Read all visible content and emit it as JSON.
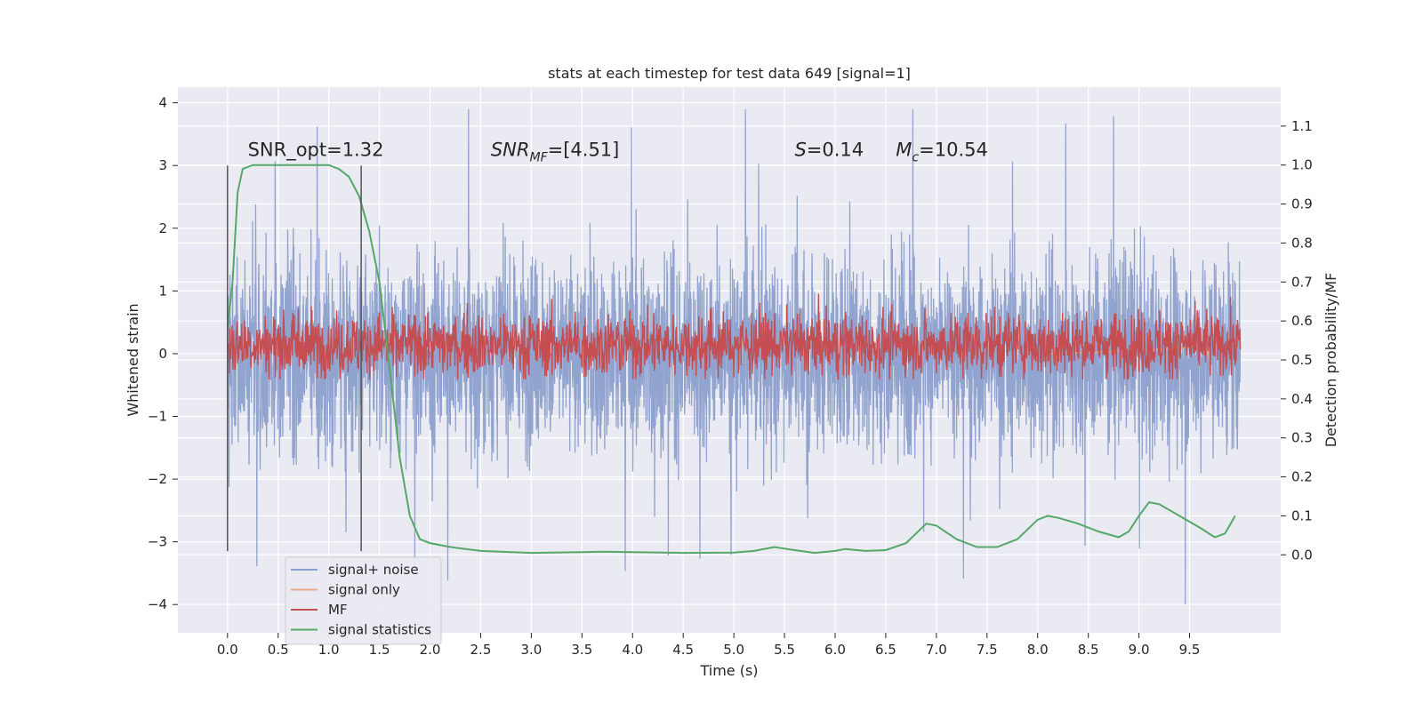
{
  "chart_data": {
    "type": "line",
    "title": "stats at each timestep for test data 649 [signal=1]",
    "xlabel": "Time (s)",
    "ylabel": "Whitened strain",
    "y2label": "Detection probability/MF",
    "xlim": [
      -0.49,
      10.4
    ],
    "ylim": [
      -4.45,
      4.25
    ],
    "y2lim": [
      -0.2,
      1.2
    ],
    "xticks": [
      "0.0",
      "0.5",
      "1.0",
      "1.5",
      "2.0",
      "2.5",
      "3.0",
      "3.5",
      "4.0",
      "4.5",
      "5.0",
      "5.5",
      "6.0",
      "6.5",
      "7.0",
      "7.5",
      "8.0",
      "8.5",
      "9.0",
      "9.5"
    ],
    "yticks": [
      "4",
      "3",
      "2",
      "1",
      "0",
      "−1",
      "−2",
      "−3",
      "−4"
    ],
    "y2ticks": [
      "1.1",
      "1.0",
      "0.9",
      "0.8",
      "0.7",
      "0.6",
      "0.5",
      "0.4",
      "0.3",
      "0.2",
      "0.1",
      "0.0"
    ],
    "grid": true,
    "legend_position": "lower-left",
    "annotations": [
      {
        "text": "SNR_opt=1.32",
        "x": 0.2,
        "y": 3.15
      },
      {
        "text": "SNR_MF=[4.51]",
        "x": 2.6,
        "y": 3.15
      },
      {
        "text": "S=0.14",
        "x": 5.6,
        "y": 3.15
      },
      {
        "text": "M_c=10.54",
        "x": 6.6,
        "y": 3.15
      }
    ],
    "vertical_lines": [
      {
        "x": 0.0,
        "ymin": -3.15,
        "ymax": 3.0
      },
      {
        "x": 1.32,
        "ymin": -3.15,
        "ymax": 3.0
      }
    ],
    "series": [
      {
        "name": "signal+ noise",
        "color": "#8c9fcc",
        "axis": "left",
        "description_envelope": {
          "x": [
            0.0,
            10.0
          ],
          "lower_typical": -1.5,
          "upper_typical": 1.5,
          "max": 3.9,
          "min": -4.0
        }
      },
      {
        "name": "signal only",
        "color": "#e8a888",
        "axis": "left",
        "x": [
          8.0,
          8.5,
          9.0,
          9.3,
          9.5,
          9.65,
          9.7
        ],
        "y": [
          0.0,
          0.02,
          0.05,
          0.08,
          0.1,
          0.15,
          -0.1
        ]
      },
      {
        "name": "MF",
        "color": "#c44e52",
        "axis": "right",
        "x": [
          0.0,
          10.0
        ],
        "center": 0.54,
        "spread": 0.04,
        "peak": 0.67
      },
      {
        "name": "signal statistics",
        "color": "#55a868",
        "axis": "right",
        "x": [
          0.0,
          0.05,
          0.1,
          0.15,
          0.25,
          0.5,
          1.0,
          1.1,
          1.2,
          1.3,
          1.4,
          1.5,
          1.6,
          1.7,
          1.8,
          1.9,
          2.0,
          2.2,
          2.5,
          3.0,
          3.5,
          3.7,
          4.0,
          4.5,
          5.0,
          5.2,
          5.4,
          5.6,
          5.8,
          6.0,
          6.1,
          6.3,
          6.5,
          6.7,
          6.9,
          7.0,
          7.2,
          7.4,
          7.6,
          7.8,
          8.0,
          8.1,
          8.2,
          8.4,
          8.6,
          8.8,
          8.9,
          9.0,
          9.1,
          9.2,
          9.4,
          9.6,
          9.75,
          9.85,
          9.95
        ],
        "y": [
          0.58,
          0.7,
          0.93,
          0.99,
          1.0,
          1.0,
          1.0,
          0.99,
          0.97,
          0.92,
          0.83,
          0.7,
          0.48,
          0.25,
          0.1,
          0.04,
          0.03,
          0.02,
          0.01,
          0.005,
          0.007,
          0.008,
          0.007,
          0.005,
          0.006,
          0.01,
          0.02,
          0.012,
          0.005,
          0.01,
          0.015,
          0.01,
          0.012,
          0.03,
          0.08,
          0.075,
          0.04,
          0.02,
          0.02,
          0.04,
          0.09,
          0.1,
          0.095,
          0.08,
          0.06,
          0.045,
          0.06,
          0.1,
          0.135,
          0.13,
          0.1,
          0.07,
          0.045,
          0.055,
          0.1
        ]
      }
    ]
  }
}
